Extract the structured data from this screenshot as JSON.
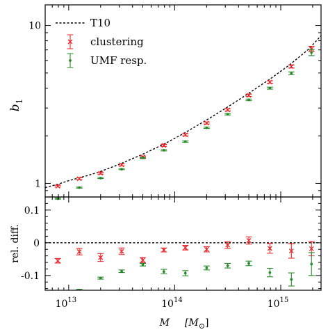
{
  "chart_data": [
    {
      "type": "scatter",
      "panel": "top",
      "xscale": "log",
      "yscale": "log",
      "xlim": [
        6000000000000.0,
        2400000000000000.0
      ],
      "ylim": [
        0.82,
        13.5
      ],
      "x_ticks": [
        {
          "value": 10000000000000.0,
          "base": "10",
          "exp": "13"
        },
        {
          "value": 100000000000000.0,
          "base": "10",
          "exp": "14"
        },
        {
          "value": 1000000000000000.0,
          "base": "10",
          "exp": "15"
        }
      ],
      "y_ticks": [
        {
          "value": 1,
          "label": "1"
        },
        {
          "value": 10,
          "label": "10"
        }
      ],
      "ylabel": {
        "base": "b",
        "sub": "1"
      },
      "legend": {
        "placement": "top-left",
        "entries": [
          {
            "key": "T10",
            "label": "T10"
          },
          {
            "key": "clustering",
            "label": "clustering"
          },
          {
            "key": "umf",
            "label": "UMF resp."
          }
        ]
      },
      "x": [
        7900000000000.0,
        12600000000000.0,
        20000000000000.0,
        31600000000000.0,
        50000000000000.0,
        79000000000000.0,
        126000000000000.0,
        200000000000000.0,
        316000000000000.0,
        500000000000000.0,
        790000000000000.0,
        1260000000000000.0,
        1950000000000000.0
      ],
      "curve": {
        "name": "T10",
        "x": [
          6000000000000.0,
          8000000000000.0,
          10000000000000.0,
          15000000000000.0,
          20000000000000.0,
          30000000000000.0,
          50000000000000.0,
          80000000000000.0,
          120000000000000.0,
          200000000000000.0,
          300000000000000.0,
          500000000000000.0,
          800000000000000.0,
          1200000000000000.0,
          1800000000000000.0,
          2400000000000000.0
        ],
        "y": [
          0.94,
          0.99,
          1.04,
          1.12,
          1.19,
          1.32,
          1.53,
          1.78,
          2.06,
          2.52,
          2.98,
          3.72,
          4.6,
          5.6,
          7.0,
          8.6
        ]
      },
      "series": [
        {
          "name": "clustering",
          "color": "#e8262b",
          "marker": "x",
          "y": [
            0.96,
            1.07,
            1.16,
            1.31,
            1.47,
            1.74,
            2.03,
            2.41,
            2.92,
            3.61,
            4.38,
            5.5,
            7.1
          ],
          "err": [
            0.012,
            0.014,
            0.016,
            0.018,
            0.02,
            0.025,
            0.03,
            0.035,
            0.045,
            0.06,
            0.08,
            0.12,
            0.28
          ]
        },
        {
          "name": "UMF resp.",
          "color": "#2a8a2a",
          "marker": "dot",
          "y": [
            0.8,
            0.94,
            1.08,
            1.23,
            1.45,
            1.62,
            1.84,
            2.25,
            2.74,
            3.38,
            4.01,
            4.98,
            6.74
          ],
          "err": [
            0.006,
            0.007,
            0.008,
            0.01,
            0.012,
            0.015,
            0.018,
            0.022,
            0.03,
            0.04,
            0.06,
            0.1,
            0.3
          ]
        }
      ]
    },
    {
      "type": "scatter",
      "panel": "bottom",
      "xscale": "log",
      "xlim": [
        6000000000000.0,
        2400000000000000.0
      ],
      "ylim": [
        -0.145,
        0.14
      ],
      "ylabel": "rel. diff.",
      "xlabel": {
        "symbol": "M",
        "unit": "[M",
        "unit_sub": "⊙",
        "unit_close": "]"
      },
      "y_ticks": [
        {
          "value": 0.1,
          "label": "0.1"
        },
        {
          "value": 0,
          "label": "0"
        },
        {
          "value": -0.1,
          "label": "-0.1"
        }
      ],
      "reference_line": 0,
      "x": [
        7900000000000.0,
        12600000000000.0,
        20000000000000.0,
        31600000000000.0,
        50000000000000.0,
        79000000000000.0,
        126000000000000.0,
        200000000000000.0,
        316000000000000.0,
        500000000000000.0,
        790000000000000.0,
        1260000000000000.0,
        1950000000000000.0
      ],
      "series": [
        {
          "name": "clustering",
          "color": "#e8262b",
          "marker": "x",
          "y": [
            -0.055,
            -0.027,
            -0.045,
            -0.026,
            -0.053,
            -0.022,
            -0.015,
            -0.02,
            -0.007,
            0.007,
            -0.017,
            -0.025,
            -0.018
          ],
          "err": [
            0.007,
            0.01,
            0.012,
            0.01,
            0.008,
            0.006,
            0.007,
            0.008,
            0.01,
            0.011,
            0.015,
            0.022,
            0.022
          ]
        },
        {
          "name": "UMF resp.",
          "color": "#2a8a2a",
          "marker": "dot",
          "y": [
            -0.155,
            -0.145,
            -0.108,
            -0.087,
            -0.067,
            -0.088,
            -0.093,
            -0.077,
            -0.07,
            -0.063,
            -0.091,
            -0.112,
            -0.065
          ],
          "err": [
            0.004,
            0.003,
            0.003,
            0.004,
            0.004,
            0.007,
            0.008,
            0.006,
            0.007,
            0.007,
            0.013,
            0.02,
            0.035
          ]
        }
      ]
    }
  ]
}
